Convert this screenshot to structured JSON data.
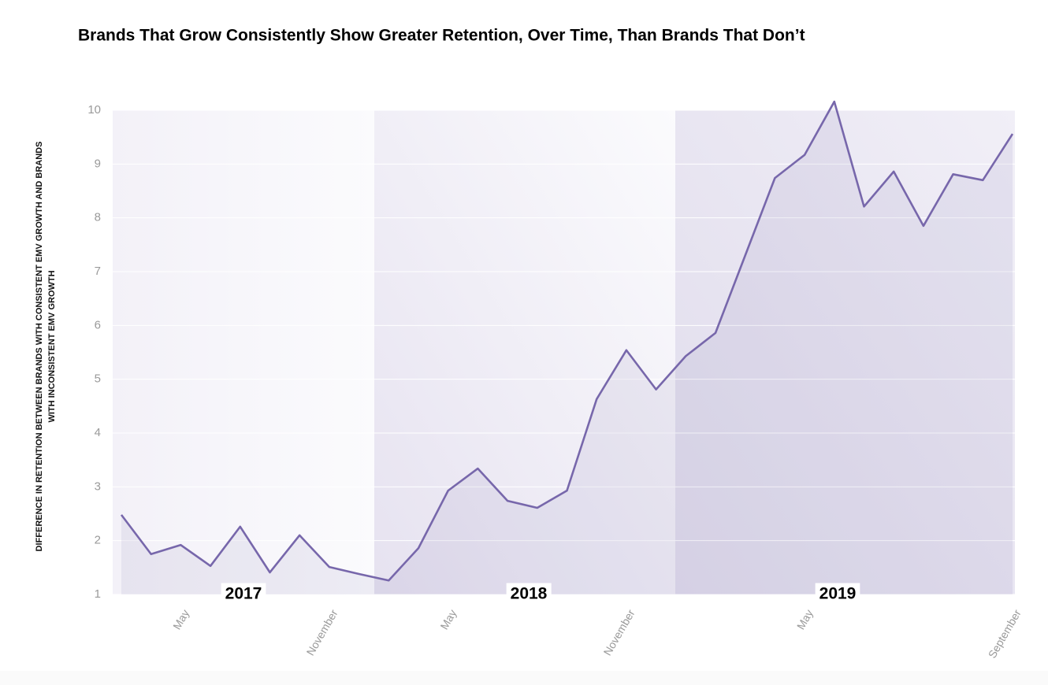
{
  "chart_data": {
    "type": "line",
    "title": "Brands That Grow Consistently Show Greater Retention, Over Time, Than Brands That Don’t",
    "ylabel": [
      "DIFFERENCE IN RETENTION BETWEEN BRANDS WITH CONSISTENT EMV GROWTH AND BRANDS",
      "WITH INCONSISTENT EMV GROWTH"
    ],
    "categories": [
      null,
      null,
      "May",
      null,
      null,
      null,
      null,
      "November",
      null,
      null,
      null,
      "May",
      null,
      null,
      null,
      null,
      null,
      "November",
      null,
      null,
      null,
      null,
      null,
      "May",
      null,
      null,
      null,
      null,
      null,
      null,
      "September"
    ],
    "values": [
      2.48,
      1.75,
      1.92,
      1.53,
      2.26,
      1.41,
      2.1,
      1.51,
      1.38,
      1.26,
      1.86,
      2.93,
      3.34,
      2.74,
      2.61,
      2.93,
      4.63,
      5.54,
      4.81,
      5.43,
      5.86,
      7.3,
      8.74,
      9.17,
      10.16,
      8.21,
      8.86,
      7.85,
      8.81,
      8.7,
      9.56
    ],
    "color": "#7767ab",
    "periods": [
      "2017",
      "2018",
      "2019"
    ],
    "ylim": [
      1,
      10
    ],
    "yticks": [
      1,
      2,
      3,
      4,
      5,
      6,
      7,
      8,
      9,
      10
    ],
    "grid": true
  }
}
